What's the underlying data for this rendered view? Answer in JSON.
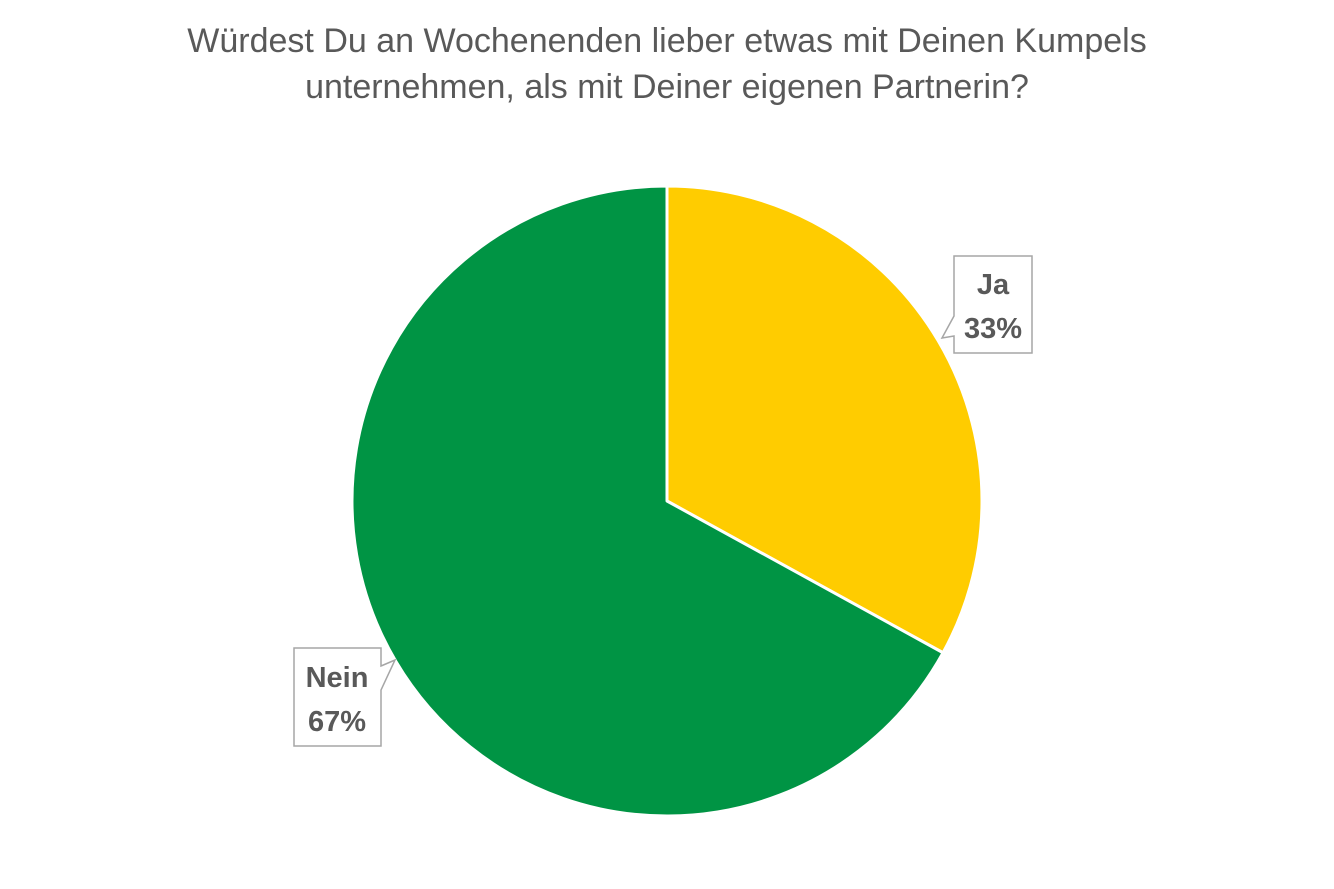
{
  "chart_data": {
    "type": "pie",
    "title_lines": [
      "Würdest Du an Wochenenden lieber etwas mit Deinen Kumpels",
      "unternehmen, als mit Deiner eigenen Partnerin?"
    ],
    "start_angle": "12 o'clock",
    "direction": "clockwise",
    "slices": [
      {
        "label": "Ja",
        "value": 33,
        "value_label": "33%",
        "color": "#FFCC00"
      },
      {
        "label": "Nein",
        "value": 67,
        "value_label": "67%",
        "color": "#009444"
      }
    ],
    "slice_border_color": "#FFFFFF",
    "data_label_border_color": "#A6A6A6",
    "text_color": "#595959",
    "legend": "none"
  }
}
